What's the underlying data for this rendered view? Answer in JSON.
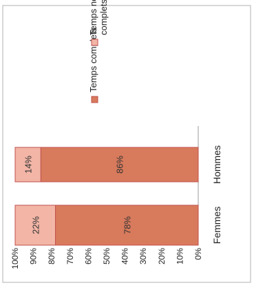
{
  "chart_data": {
    "type": "bar",
    "stacked": true,
    "orientation": "rotated-90-ccw",
    "categories": [
      "Femmes",
      "Hommes"
    ],
    "series": [
      {
        "name": "Temps complets",
        "values": [
          78,
          86
        ],
        "labels": [
          "78%",
          "86%"
        ],
        "color": "#d87a5c"
      },
      {
        "name": "Temps non complets",
        "values": [
          22,
          14
        ],
        "labels": [
          "22%",
          "14%"
        ],
        "color": "#f2b5a6"
      }
    ],
    "ylim": [
      0,
      100
    ],
    "yticks": [
      "0%",
      "10%",
      "20%",
      "30%",
      "40%",
      "50%",
      "60%",
      "70%",
      "80%",
      "90%",
      "100%"
    ],
    "legend_position": "right",
    "grid": false,
    "border_color": "#c0504d",
    "frame_color": "#b0b0b0"
  }
}
